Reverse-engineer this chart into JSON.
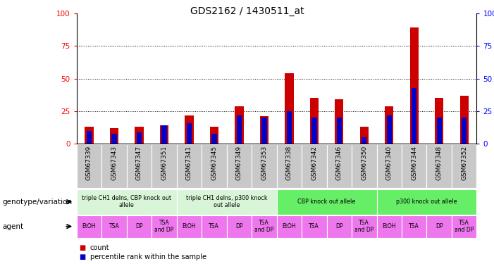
{
  "title": "GDS2162 / 1430511_at",
  "samples": [
    "GSM67339",
    "GSM67343",
    "GSM67347",
    "GSM67351",
    "GSM67341",
    "GSM67345",
    "GSM67349",
    "GSM67353",
    "GSM67338",
    "GSM67342",
    "GSM67346",
    "GSM67350",
    "GSM67340",
    "GSM67344",
    "GSM67348",
    "GSM67352"
  ],
  "count_values": [
    13,
    12,
    13,
    14,
    22,
    13,
    29,
    21,
    54,
    35,
    34,
    13,
    29,
    89,
    35,
    37
  ],
  "percentile_values": [
    10,
    8,
    9,
    14,
    16,
    8,
    22,
    20,
    25,
    20,
    20,
    5,
    22,
    43,
    20,
    20
  ],
  "genotype_groups": [
    {
      "label": "triple CH1 delns, CBP knock out\nallele",
      "start": 0,
      "end": 3,
      "color": "#d8f5d8"
    },
    {
      "label": "triple CH1 delns, p300 knock\nout allele",
      "start": 4,
      "end": 7,
      "color": "#d8f5d8"
    },
    {
      "label": "CBP knock out allele",
      "start": 8,
      "end": 11,
      "color": "#66ee66"
    },
    {
      "label": "p300 knock out allele",
      "start": 12,
      "end": 15,
      "color": "#66ee66"
    }
  ],
  "agent_labels": [
    "EtOH",
    "TSA",
    "DP",
    "TSA\nand DP",
    "EtOH",
    "TSA",
    "DP",
    "TSA\nand DP",
    "EtOH",
    "TSA",
    "DP",
    "TSA\nand DP",
    "EtOH",
    "TSA",
    "DP",
    "TSA\nand DP"
  ],
  "bar_color": "#cc0000",
  "percentile_color": "#0000cc",
  "ylim": [
    0,
    100
  ],
  "yticks": [
    0,
    25,
    50,
    75,
    100
  ],
  "legend_count_color": "#cc0000",
  "legend_percentile_color": "#0000cc",
  "agent_bg_color": "#ee77ee",
  "sample_bg_color": "#bbbbbb"
}
